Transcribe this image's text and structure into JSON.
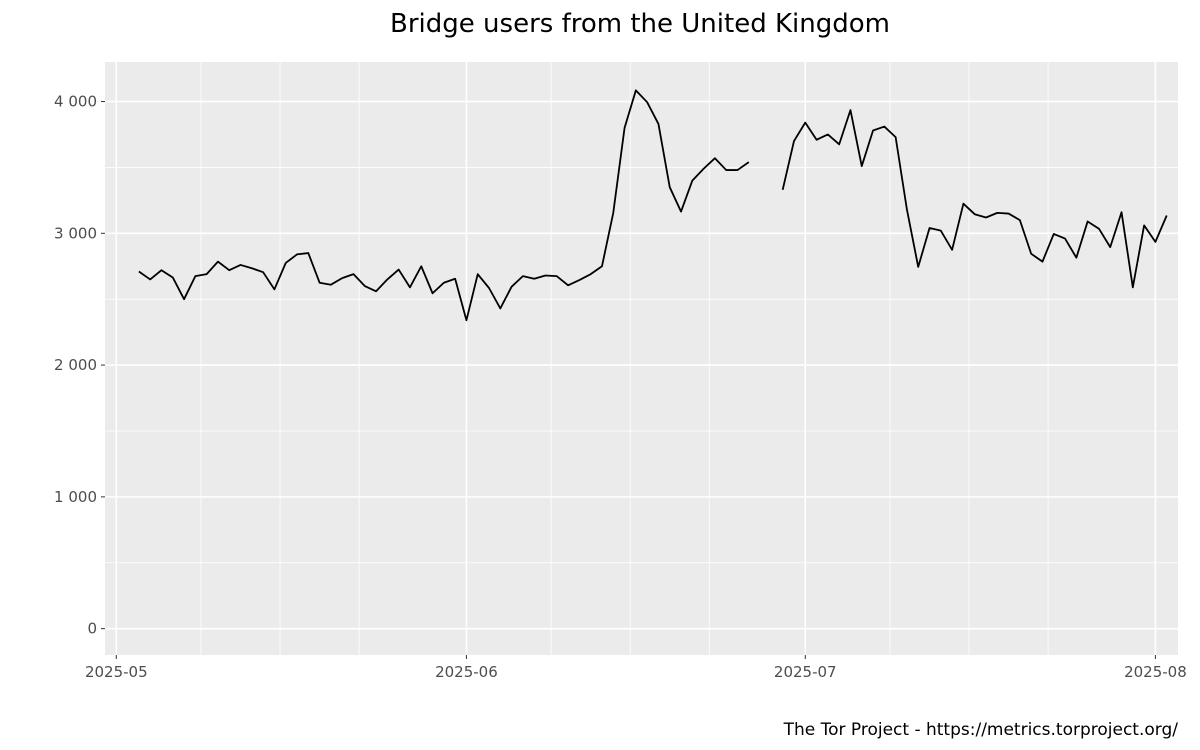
{
  "chart_data": {
    "type": "line",
    "title": "Bridge users from the United Kingdom",
    "xlabel": "",
    "ylabel": "",
    "caption": "The Tor Project - https://metrics.torproject.org/",
    "x_start": "2025-05-03",
    "x_end": "2025-08-01",
    "xlim": [
      "2025-04-30",
      "2025-08-03"
    ],
    "ylim": [
      -200,
      4300
    ],
    "yticks": [
      {
        "value": 0,
        "label": "0"
      },
      {
        "value": 1000,
        "label": "1 000"
      },
      {
        "value": 2000,
        "label": "2 000"
      },
      {
        "value": 3000,
        "label": "3 000"
      },
      {
        "value": 4000,
        "label": "4 000"
      }
    ],
    "xticks": [
      {
        "value": "2025-05-01",
        "label": "2025-05"
      },
      {
        "value": "2025-06-01",
        "label": "2025-06"
      },
      {
        "value": "2025-07-01",
        "label": "2025-07"
      },
      {
        "value": "2025-08-01",
        "label": "2025-08"
      }
    ],
    "grid": true,
    "background": "#ebebeb",
    "gridColor": "#ffffff",
    "lineColor": "#000000",
    "series": [
      {
        "values": [
          2710,
          2650,
          2720,
          2665,
          2500,
          2675,
          2690,
          2785,
          2720,
          2760,
          2735,
          2705,
          2575,
          2775,
          2840,
          2850,
          2625,
          2610,
          2660,
          2690,
          2600,
          2560,
          2650,
          2725,
          2590,
          2750,
          2545,
          2625,
          2655,
          2340,
          2690,
          2585,
          2430,
          2595,
          2675,
          2655,
          2680,
          2675,
          2605,
          2645,
          2690,
          2750,
          3155,
          3800,
          4085,
          3995,
          3830,
          3350,
          3165,
          3400,
          3490,
          3570,
          3480,
          3480,
          3540,
          null,
          null,
          3330,
          3700,
          3840,
          3710,
          3750,
          3675,
          3935,
          3510,
          3780,
          3810,
          3730,
          3180,
          2745,
          3040,
          3020,
          2875,
          3225,
          3145,
          3120,
          3155,
          3150,
          3100,
          2845,
          2785,
          2995,
          2960,
          2815,
          3090,
          3035,
          2895,
          3160,
          2590,
          3060,
          2935,
          3135
        ]
      }
    ]
  }
}
